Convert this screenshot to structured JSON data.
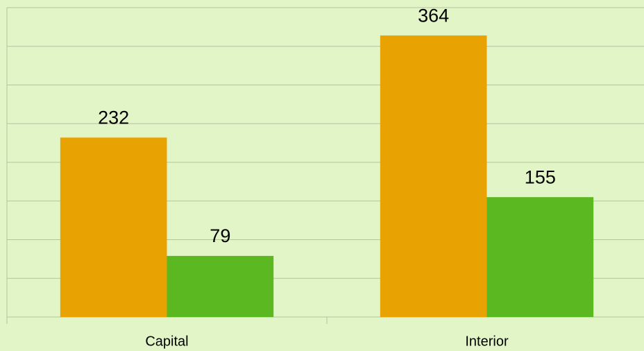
{
  "chart_data": {
    "type": "bar",
    "categories": [
      "Capital",
      "Interior"
    ],
    "series": [
      {
        "color": "#e8a202",
        "values": [
          232,
          364
        ]
      },
      {
        "color": "#5cb820",
        "values": [
          79,
          155
        ]
      }
    ],
    "ylim": [
      0,
      400
    ],
    "yticks": [
      0,
      50,
      100,
      150,
      200,
      250,
      300,
      350,
      400
    ],
    "grid": true
  }
}
